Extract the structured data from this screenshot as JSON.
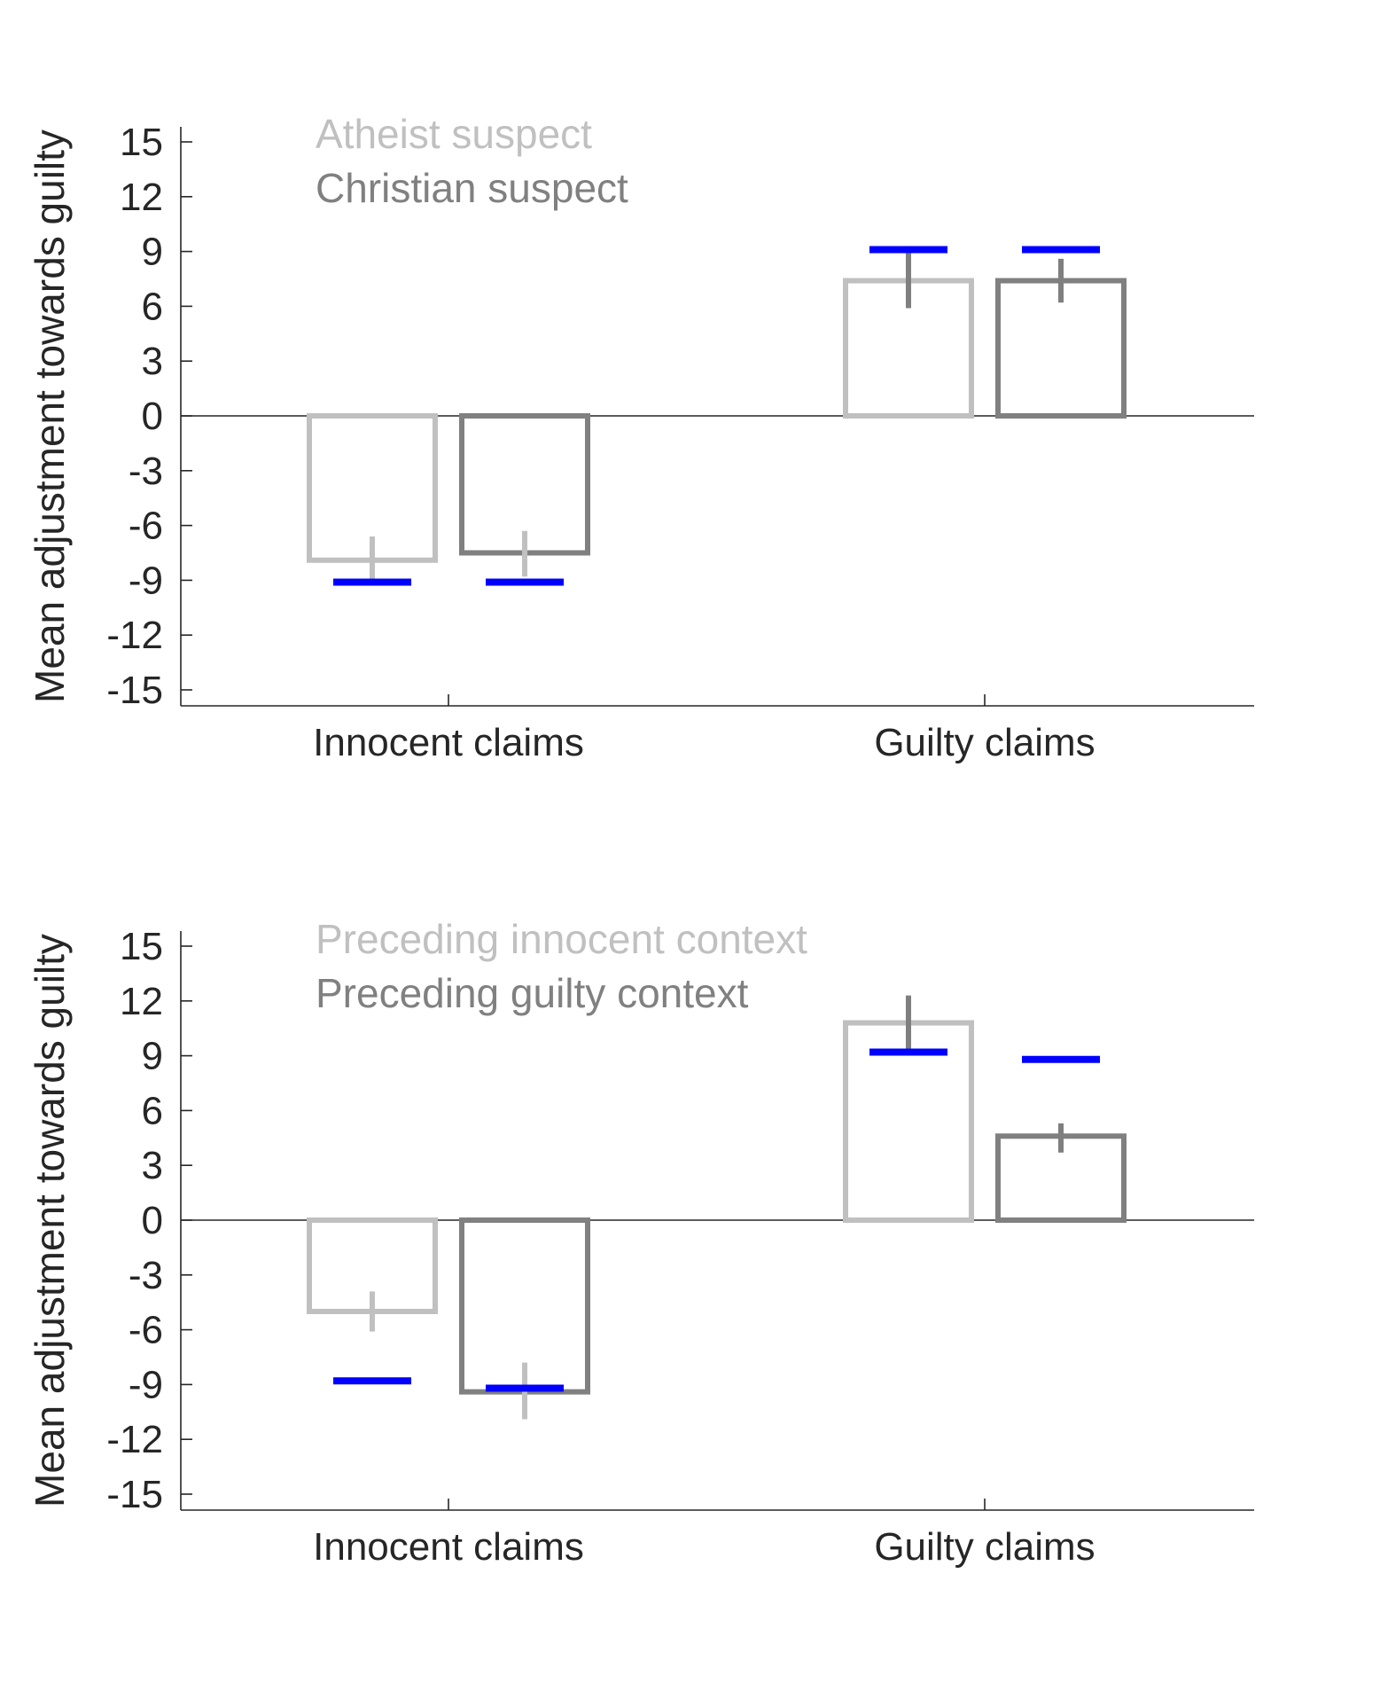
{
  "chart_data": [
    {
      "type": "bar",
      "categories": [
        "Innocent claims",
        "Guilty claims"
      ],
      "ylabel": "Mean adjustment towards guilty",
      "xlabel": "",
      "ylim": [
        -16,
        16
      ],
      "yticks": [
        15,
        12,
        9,
        6,
        3,
        0,
        -3,
        -6,
        -9,
        -12,
        -15
      ],
      "legend_position": "top-left",
      "series": [
        {
          "name": "Atheist suspect",
          "color": "#c0c0c0",
          "values": [
            -7.9,
            7.4
          ],
          "error_low": [
            -9.2,
            5.9
          ],
          "error_high": [
            -6.6,
            9.0
          ],
          "error_color": [
            "#c0c0c0",
            "#7f7f7f"
          ],
          "reference": [
            -9.1,
            9.1
          ]
        },
        {
          "name": "Christian suspect",
          "color": "#808080",
          "values": [
            -7.5,
            7.4
          ],
          "error_low": [
            -8.8,
            6.2
          ],
          "error_high": [
            -6.3,
            8.6
          ],
          "error_color": [
            "#c0c0c0",
            "#7f7f7f"
          ],
          "reference": [
            -9.1,
            9.1
          ]
        }
      ],
      "reference_color": "#0000ff"
    },
    {
      "type": "bar",
      "categories": [
        "Innocent claims",
        "Guilty claims"
      ],
      "ylabel": "Mean adjustment towards guilty",
      "xlabel": "",
      "ylim": [
        -16,
        16
      ],
      "yticks": [
        15,
        12,
        9,
        6,
        3,
        0,
        -3,
        -6,
        -9,
        -12,
        -15
      ],
      "legend_position": "top-left",
      "series": [
        {
          "name": "Preceding innocent context",
          "color": "#c0c0c0",
          "values": [
            -5.0,
            10.8
          ],
          "error_low": [
            -6.1,
            9.3
          ],
          "error_high": [
            -3.9,
            12.3
          ],
          "error_color": [
            "#c0c0c0",
            "#7f7f7f"
          ],
          "reference": [
            -8.8,
            9.2
          ]
        },
        {
          "name": "Preceding guilty context",
          "color": "#808080",
          "values": [
            -9.4,
            4.6
          ],
          "error_low": [
            -10.9,
            3.7
          ],
          "error_high": [
            -7.8,
            5.3
          ],
          "error_color": [
            "#c0c0c0",
            "#7f7f7f"
          ],
          "reference": [
            -9.2,
            8.8
          ]
        }
      ],
      "reference_color": "#0000ff"
    }
  ]
}
